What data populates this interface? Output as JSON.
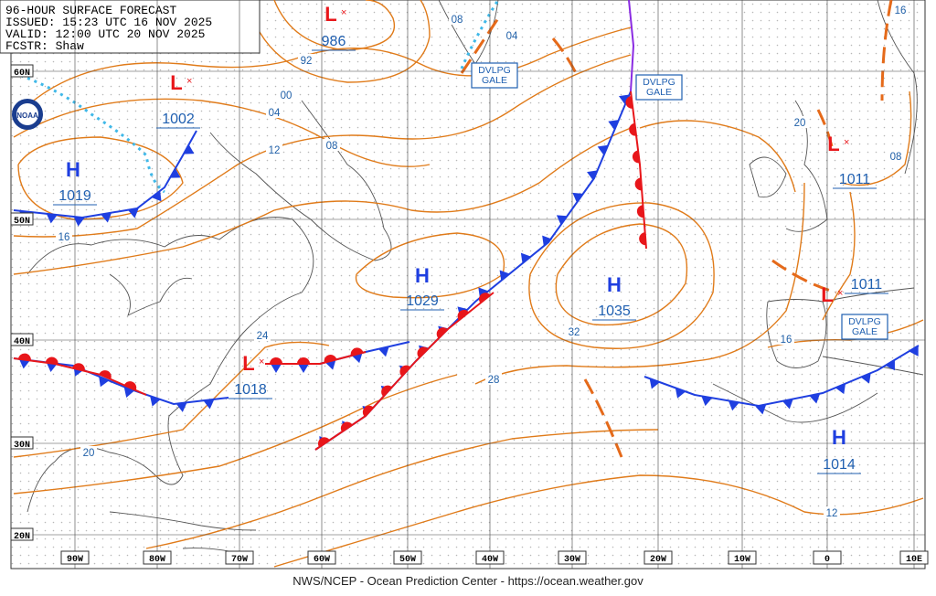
{
  "header": {
    "lines": [
      "96-HOUR SURFACE FORECAST",
      "ISSUED: 15:23 UTC 16 NOV 2025",
      "VALID: 12:00 UTC 20 NOV 2025",
      "FCSTR: Shaw"
    ]
  },
  "systems": [
    {
      "symbol": "L",
      "pressure": 986
    },
    {
      "symbol": "L",
      "pressure": 1002
    },
    {
      "symbol": "H",
      "pressure": 1019
    },
    {
      "symbol": "H",
      "pressure": 1029
    },
    {
      "symbol": "H",
      "pressure": 1035
    },
    {
      "symbol": "L",
      "pressure": 1018
    },
    {
      "symbol": "L",
      "pressure": 1011
    },
    {
      "symbol": "L",
      "pressure": 1011
    },
    {
      "symbol": "H",
      "pressure": 1014
    }
  ],
  "gale_labels": [
    [
      "DVLPG",
      "GALE"
    ],
    [
      "DVLPG",
      "GALE"
    ],
    [
      "DVLPG",
      "GALE"
    ]
  ],
  "isobar_labels": [
    "92",
    "00",
    "04",
    "08",
    "12",
    "16",
    "20",
    "24",
    "28",
    "32",
    "08",
    "04",
    "16",
    "20",
    "08",
    "12",
    "16"
  ],
  "latitude_labels": [
    "60N",
    "50N",
    "40N",
    "30N",
    "20N"
  ],
  "longitude_labels": [
    "90W",
    "80W",
    "70W",
    "60W",
    "50W",
    "40W",
    "30W",
    "20W",
    "10W",
    "0",
    "10E"
  ],
  "footer": "NWS/NCEP - Ocean Prediction Center - https://ocean.weather.gov"
}
